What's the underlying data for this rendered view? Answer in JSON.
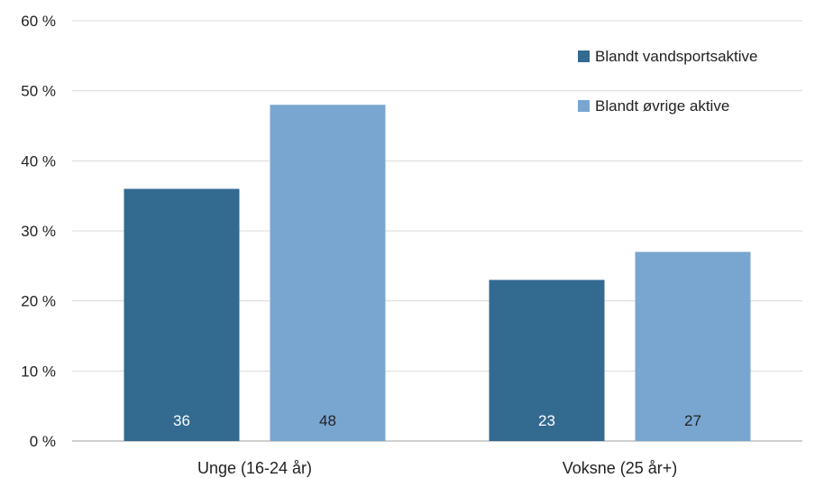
{
  "chart_data": {
    "type": "bar",
    "categories": [
      "Unge (16-24 år)",
      "Voksne (25 år+)"
    ],
    "series": [
      {
        "name": "Blandt vandsportsaktive",
        "values": [
          36,
          23
        ],
        "color": "#336A90",
        "label_color": "#ffffff"
      },
      {
        "name": "Blandt øvrige aktive",
        "values": [
          48,
          27
        ],
        "color": "#79A6D0",
        "label_color": "#222222"
      }
    ],
    "data_labels": [
      [
        "36",
        "23"
      ],
      [
        "48",
        "27"
      ]
    ],
    "y_ticks": [
      0,
      10,
      20,
      30,
      40,
      50,
      60
    ],
    "y_tick_labels": [
      "0 %",
      "10 %",
      "20 %",
      "30 %",
      "40 %",
      "50 %",
      "60 %"
    ],
    "ylim": [
      0,
      60
    ],
    "grid": true,
    "legend_position": "top-right",
    "title": "",
    "xlabel": "",
    "ylabel": ""
  }
}
